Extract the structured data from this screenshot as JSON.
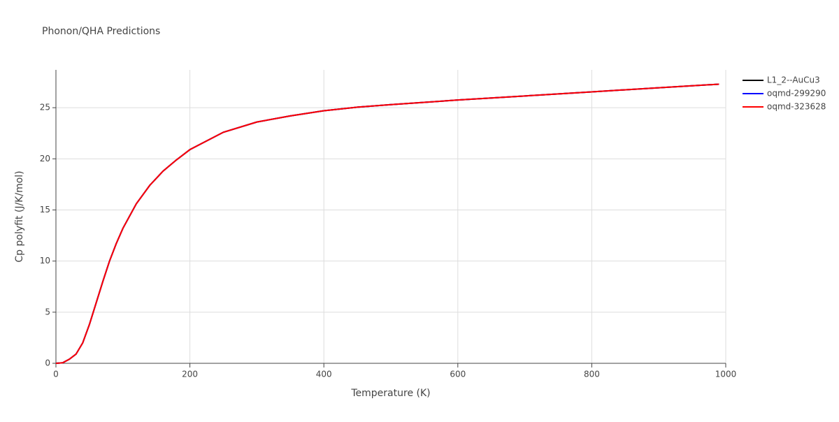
{
  "chart_data": {
    "type": "line",
    "title": "Phonon/QHA Predictions",
    "x_label": "Temperature (K)",
    "y_label": "Cp polyfit (J/K/mol)",
    "x": [
      0,
      10,
      20,
      30,
      40,
      50,
      60,
      70,
      80,
      90,
      100,
      120,
      140,
      160,
      180,
      200,
      250,
      300,
      350,
      400,
      450,
      500,
      600,
      700,
      800,
      900,
      990
    ],
    "series": [
      {
        "name": "L1_2--AuCu3",
        "color": "#000000",
        "values": [
          0,
          0.05,
          0.4,
          0.9,
          2.0,
          3.8,
          5.9,
          8.0,
          10.0,
          11.7,
          13.2,
          15.6,
          17.4,
          18.8,
          19.9,
          20.9,
          22.6,
          23.6,
          24.2,
          24.7,
          25.05,
          25.3,
          25.75,
          26.15,
          26.55,
          26.95,
          27.3
        ]
      },
      {
        "name": "oqmd-299290",
        "color": "#0000ff",
        "values": [
          0,
          0.05,
          0.4,
          0.9,
          2.0,
          3.8,
          5.9,
          8.0,
          10.0,
          11.7,
          13.2,
          15.6,
          17.4,
          18.8,
          19.9,
          20.9,
          22.6,
          23.6,
          24.2,
          24.7,
          25.05,
          25.3,
          25.75,
          26.15,
          26.55,
          26.95,
          27.3
        ]
      },
      {
        "name": "oqmd-323628",
        "color": "#ff0000",
        "values": [
          0,
          0.05,
          0.4,
          0.9,
          2.0,
          3.8,
          5.9,
          8.0,
          10.0,
          11.7,
          13.2,
          15.6,
          17.4,
          18.8,
          19.9,
          20.9,
          22.6,
          23.6,
          24.2,
          24.7,
          25.05,
          25.3,
          25.75,
          26.15,
          26.55,
          26.95,
          27.3
        ]
      }
    ],
    "xlim": [
      0,
      1000
    ],
    "xticks": [
      0,
      200,
      400,
      600,
      800,
      1000
    ],
    "ylim": [
      0,
      28.7
    ],
    "yticks": [
      0,
      5,
      10,
      15,
      20,
      25
    ],
    "grid": true,
    "legend": "top-right"
  }
}
